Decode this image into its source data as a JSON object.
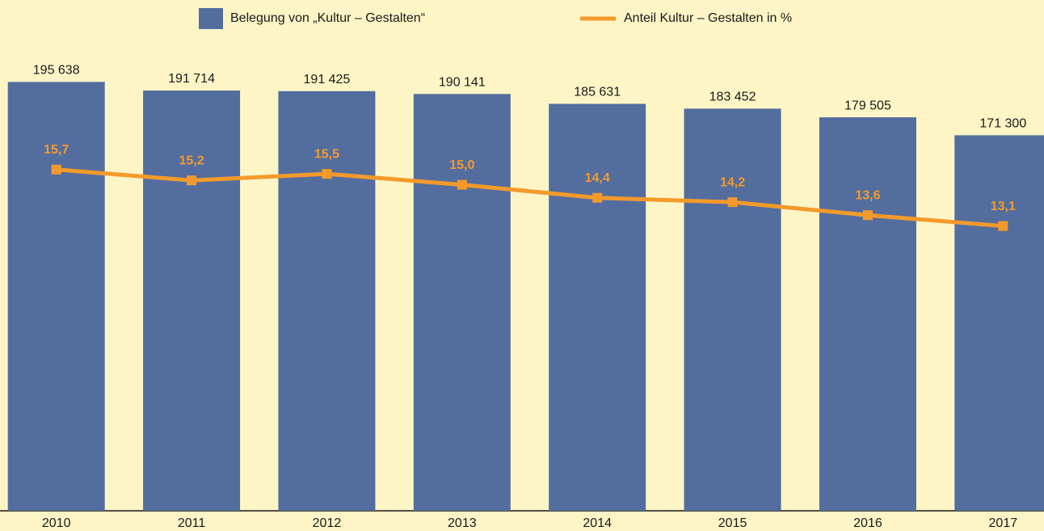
{
  "chart_data": {
    "type": "bar-line",
    "categories": [
      "2010",
      "2011",
      "2012",
      "2013",
      "2014",
      "2015",
      "2016",
      "2017"
    ],
    "ylim": [
      0,
      233000
    ],
    "y2lim": [
      0,
      23.5
    ],
    "series": [
      {
        "name": "Belegung von „Kultur – Gestalten“",
        "type": "bar",
        "color": "#536e9e",
        "values": [
          195638,
          191714,
          191425,
          190141,
          185631,
          183452,
          179505,
          171300
        ],
        "value_labels": [
          "195 638",
          "191 714",
          "191 425",
          "190 141",
          "185 631",
          "183 452",
          "179 505",
          "171 300"
        ]
      },
      {
        "name": "Anteil Kultur – Gestalten in %",
        "type": "line",
        "axis": "y2",
        "color": "#f39a2b",
        "values": [
          15.7,
          15.2,
          15.5,
          15.0,
          14.4,
          14.2,
          13.6,
          13.1
        ],
        "value_labels": [
          "15,7",
          "15,2",
          "15,5",
          "15,0",
          "14,4",
          "14,2",
          "13,6",
          "13,1"
        ]
      }
    ]
  }
}
